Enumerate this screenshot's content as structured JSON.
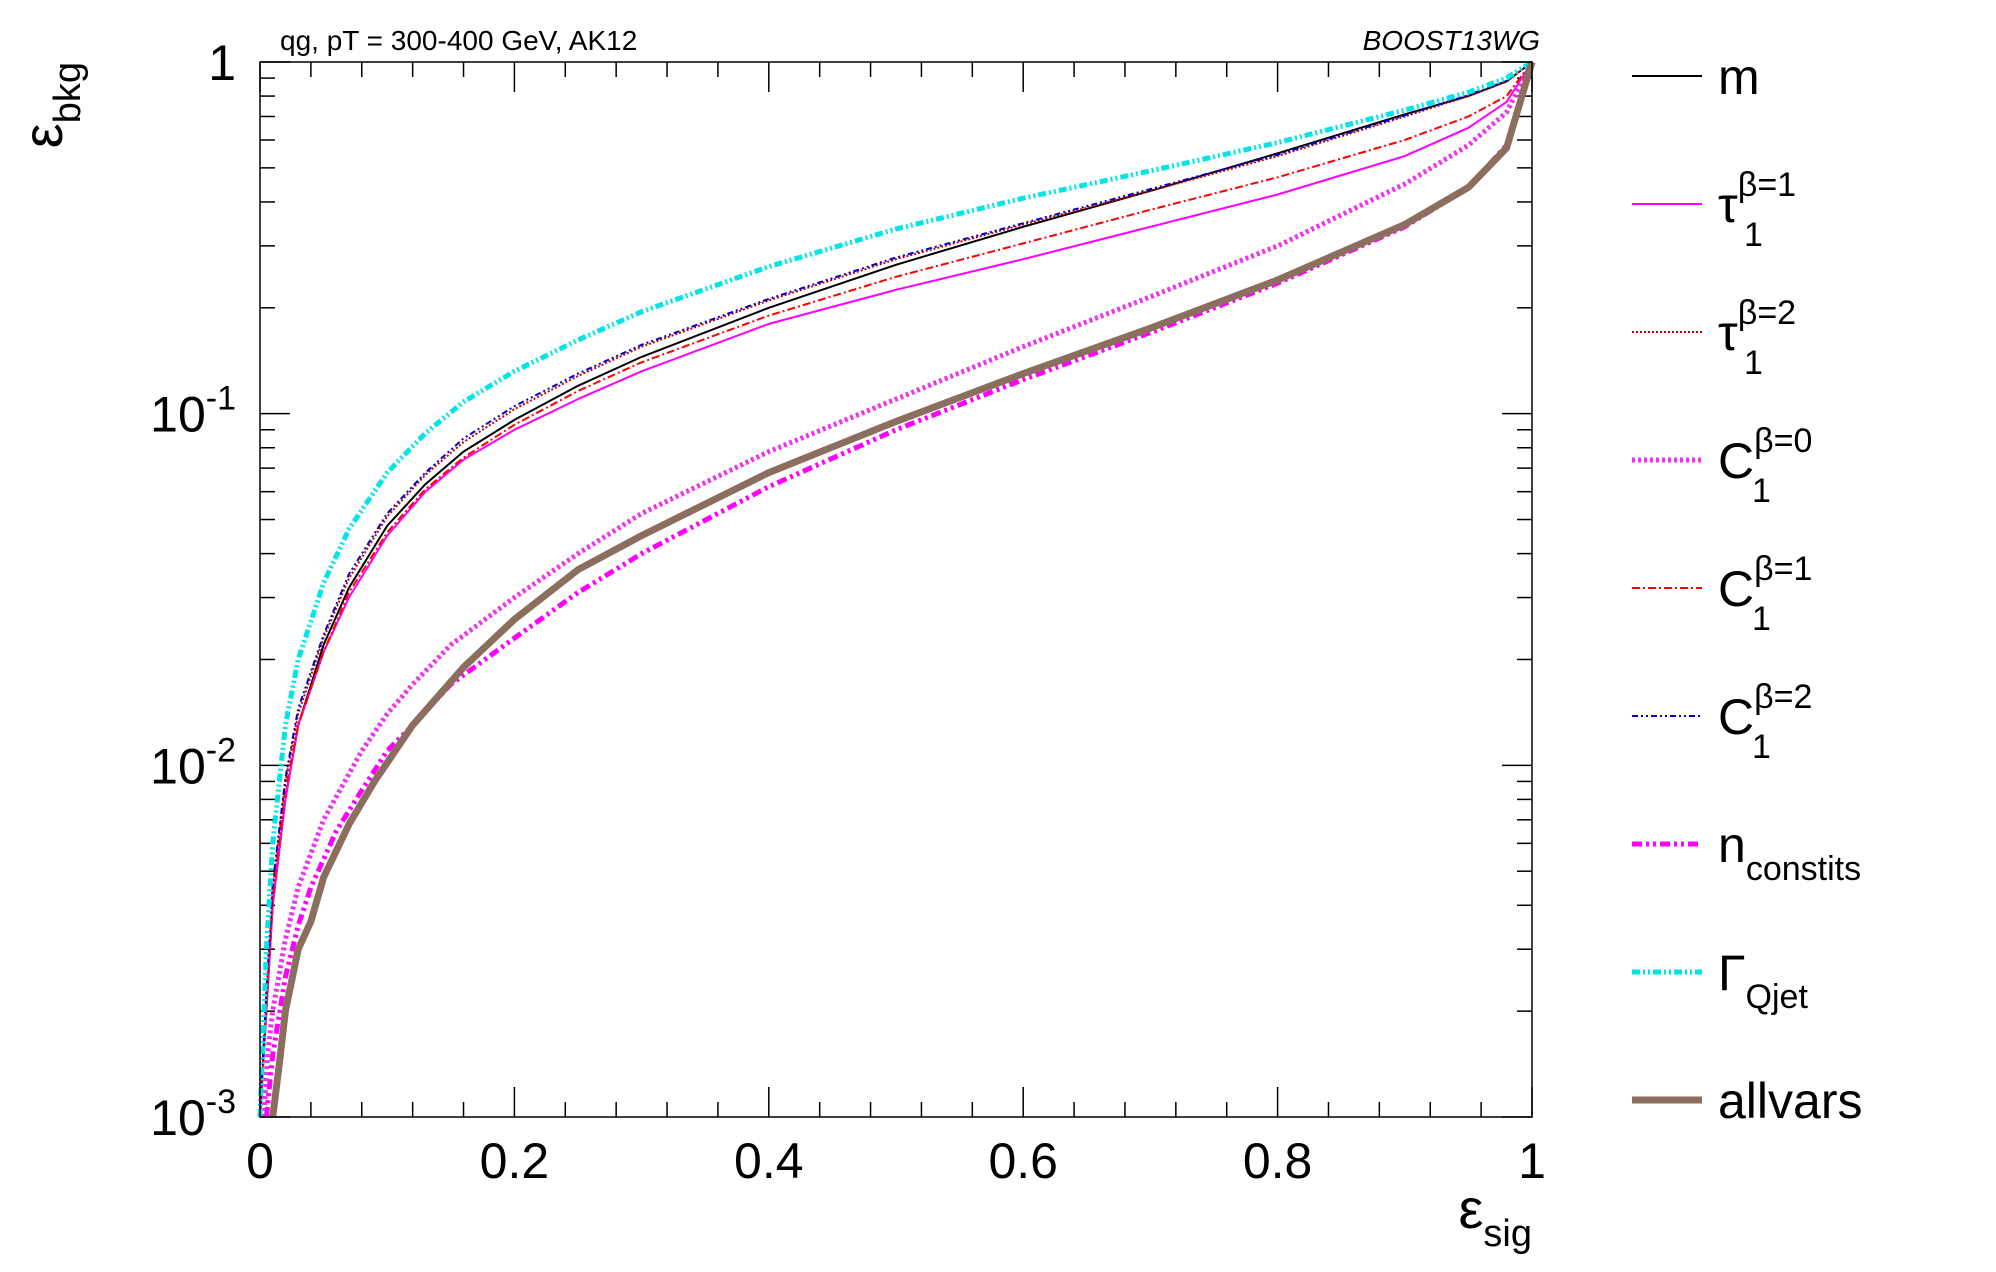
{
  "chart_data": {
    "type": "line",
    "title": "qg, pT = 300-400 GeV, AK12",
    "top_right_label": "BOOST13WG",
    "xlabel": {
      "main": "ε",
      "sub": "sig"
    },
    "ylabel": {
      "main": "ε",
      "sub": "bkg"
    },
    "xlim": [
      0,
      1
    ],
    "ylim": [
      0.001,
      1
    ],
    "yscale": "log",
    "x_ticks": [
      "0",
      "0.2",
      "0.4",
      "0.6",
      "0.8",
      "1"
    ],
    "y_ticks": [
      {
        "value": 1,
        "base": "1",
        "exp": ""
      },
      {
        "value": 0.1,
        "base": "10",
        "exp": "-1"
      },
      {
        "value": 0.01,
        "base": "10",
        "exp": "-2"
      },
      {
        "value": 0.001,
        "base": "10",
        "exp": "-3"
      }
    ],
    "grid": false,
    "legend_placement": "right",
    "series": [
      {
        "id": "m",
        "base": "m",
        "sup": "",
        "sub": "",
        "color": "#000000",
        "width": 2,
        "dash": "",
        "x": [
          0,
          0.005,
          0.01,
          0.02,
          0.03,
          0.05,
          0.07,
          0.1,
          0.13,
          0.16,
          0.2,
          0.25,
          0.3,
          0.4,
          0.5,
          0.6,
          0.7,
          0.8,
          0.9,
          0.95,
          0.98,
          1.0
        ],
        "y": [
          0.001,
          0.002,
          0.004,
          0.008,
          0.013,
          0.022,
          0.032,
          0.048,
          0.063,
          0.078,
          0.096,
          0.12,
          0.145,
          0.2,
          0.265,
          0.34,
          0.43,
          0.55,
          0.71,
          0.8,
          0.88,
          1.0
        ]
      },
      {
        "id": "tau1b1",
        "base": "τ",
        "sup": "β=1",
        "sub": "1",
        "color": "#ff00ff",
        "width": 2,
        "dash": "",
        "x": [
          0,
          0.005,
          0.01,
          0.02,
          0.03,
          0.05,
          0.07,
          0.1,
          0.13,
          0.16,
          0.2,
          0.25,
          0.3,
          0.4,
          0.5,
          0.6,
          0.7,
          0.8,
          0.9,
          0.95,
          0.98,
          1.0
        ],
        "y": [
          0.001,
          0.002,
          0.004,
          0.008,
          0.013,
          0.021,
          0.03,
          0.045,
          0.06,
          0.074,
          0.09,
          0.11,
          0.132,
          0.18,
          0.225,
          0.275,
          0.34,
          0.42,
          0.54,
          0.65,
          0.77,
          1.0
        ]
      },
      {
        "id": "tau1b2",
        "base": "τ",
        "sup": "β=2",
        "sub": "1",
        "color": "#cc0000",
        "width": 2,
        "dash": "2,2",
        "x": [
          0,
          0.005,
          0.01,
          0.02,
          0.03,
          0.05,
          0.07,
          0.1,
          0.13,
          0.16,
          0.2,
          0.25,
          0.3,
          0.4,
          0.5,
          0.6,
          0.7,
          0.8,
          0.9,
          0.95,
          0.98,
          1.0
        ],
        "y": [
          0.001,
          0.0022,
          0.0045,
          0.009,
          0.014,
          0.023,
          0.034,
          0.051,
          0.067,
          0.083,
          0.103,
          0.128,
          0.155,
          0.21,
          0.275,
          0.345,
          0.43,
          0.54,
          0.7,
          0.8,
          0.88,
          1.0
        ]
      },
      {
        "id": "c1b0",
        "base": "C",
        "sup": "β=0",
        "sub": "1",
        "color": "#ee33ee",
        "width": 5,
        "dash": "3,3",
        "x": [
          0.003,
          0.006,
          0.01,
          0.02,
          0.03,
          0.05,
          0.08,
          0.1,
          0.12,
          0.15,
          0.2,
          0.25,
          0.3,
          0.4,
          0.5,
          0.6,
          0.7,
          0.8,
          0.9,
          0.95,
          0.98,
          1.0
        ],
        "y": [
          0.001,
          0.0015,
          0.002,
          0.0032,
          0.0045,
          0.007,
          0.011,
          0.014,
          0.017,
          0.022,
          0.03,
          0.04,
          0.052,
          0.078,
          0.11,
          0.155,
          0.215,
          0.3,
          0.45,
          0.58,
          0.72,
          1.0
        ]
      },
      {
        "id": "c1b1",
        "base": "C",
        "sup": "β=1",
        "sub": "1",
        "color": "#ff0000",
        "width": 2,
        "dash": "8,3,2,3",
        "x": [
          0,
          0.005,
          0.01,
          0.02,
          0.03,
          0.05,
          0.07,
          0.1,
          0.13,
          0.16,
          0.2,
          0.25,
          0.3,
          0.4,
          0.5,
          0.6,
          0.7,
          0.8,
          0.9,
          0.95,
          0.98,
          1.0
        ],
        "y": [
          0.001,
          0.0021,
          0.0042,
          0.0085,
          0.013,
          0.021,
          0.031,
          0.046,
          0.061,
          0.075,
          0.093,
          0.116,
          0.14,
          0.19,
          0.245,
          0.305,
          0.38,
          0.47,
          0.6,
          0.7,
          0.8,
          1.0
        ]
      },
      {
        "id": "c1b2",
        "base": "C",
        "sup": "β=2",
        "sub": "1",
        "color": "#0000cc",
        "width": 2,
        "dash": "6,3,2,3,2,3",
        "x": [
          0,
          0.005,
          0.01,
          0.02,
          0.03,
          0.05,
          0.07,
          0.1,
          0.13,
          0.16,
          0.2,
          0.25,
          0.3,
          0.4,
          0.5,
          0.6,
          0.7,
          0.8,
          0.9,
          0.95,
          0.98,
          1.0
        ],
        "y": [
          0.001,
          0.0023,
          0.0046,
          0.0092,
          0.0145,
          0.0235,
          0.035,
          0.052,
          0.068,
          0.085,
          0.105,
          0.13,
          0.157,
          0.212,
          0.278,
          0.348,
          0.435,
          0.545,
          0.705,
          0.805,
          0.885,
          1.0
        ]
      },
      {
        "id": "nconst",
        "base": "n",
        "sup": "",
        "sub": "constits",
        "color": "#ff00ff",
        "width": 5,
        "dash": "10,4,3,4,3,4",
        "x": [
          0.005,
          0.01,
          0.02,
          0.03,
          0.04,
          0.06,
          0.08,
          0.1,
          0.12,
          0.15,
          0.2,
          0.25,
          0.3,
          0.4,
          0.5,
          0.6,
          0.7,
          0.8,
          0.9,
          0.95,
          0.98,
          1.0
        ],
        "y": [
          0.001,
          0.0015,
          0.0025,
          0.0035,
          0.0045,
          0.0065,
          0.0085,
          0.011,
          0.013,
          0.017,
          0.023,
          0.031,
          0.04,
          0.062,
          0.09,
          0.125,
          0.17,
          0.235,
          0.34,
          0.44,
          0.58,
          1.0
        ]
      },
      {
        "id": "gammaq",
        "base": "Γ",
        "sup": "",
        "sub": "Qjet",
        "color": "#00e5e5",
        "width": 5,
        "dash": "8,3,2,3,2,3",
        "x": [
          0,
          0.005,
          0.01,
          0.02,
          0.03,
          0.05,
          0.07,
          0.1,
          0.13,
          0.16,
          0.2,
          0.25,
          0.3,
          0.4,
          0.5,
          0.6,
          0.7,
          0.8,
          0.9,
          0.95,
          0.98,
          1.0
        ],
        "y": [
          0.001,
          0.003,
          0.006,
          0.013,
          0.02,
          0.033,
          0.047,
          0.068,
          0.088,
          0.108,
          0.132,
          0.162,
          0.195,
          0.262,
          0.335,
          0.41,
          0.49,
          0.59,
          0.73,
          0.82,
          0.9,
          1.0
        ]
      },
      {
        "id": "allvars",
        "base": "allvars",
        "sup": "",
        "sub": "",
        "color": "#8c6e5f",
        "width": 7,
        "dash": "",
        "x": [
          0.01,
          0.015,
          0.02,
          0.03,
          0.04,
          0.05,
          0.07,
          0.09,
          0.12,
          0.16,
          0.2,
          0.25,
          0.3,
          0.4,
          0.5,
          0.6,
          0.7,
          0.8,
          0.9,
          0.95,
          0.98,
          1.0
        ],
        "y": [
          0.001,
          0.0014,
          0.002,
          0.003,
          0.0036,
          0.0048,
          0.0068,
          0.009,
          0.013,
          0.019,
          0.026,
          0.036,
          0.045,
          0.068,
          0.095,
          0.13,
          0.175,
          0.24,
          0.345,
          0.44,
          0.57,
          1.0
        ]
      }
    ]
  }
}
